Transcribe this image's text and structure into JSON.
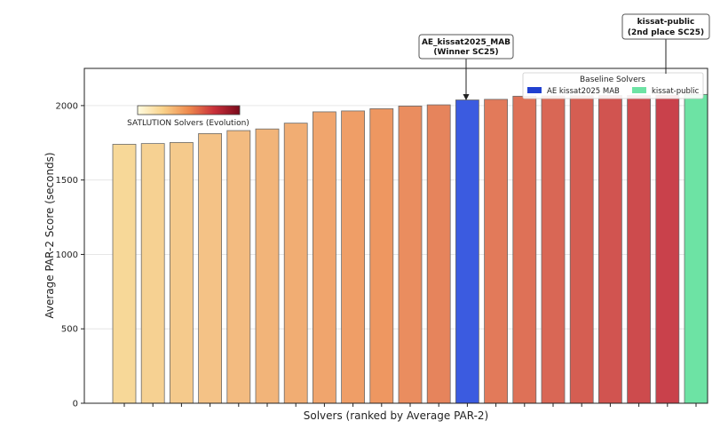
{
  "chart_data": {
    "type": "bar",
    "title": "",
    "xlabel": "Solvers (ranked by Average PAR-2)",
    "ylabel": "Average PAR-2 Score (seconds)",
    "ylim": [
      0,
      2250
    ],
    "yticks": [
      0,
      500,
      1000,
      1500,
      2000
    ],
    "grid": "horizontal",
    "values": [
      1740,
      1745,
      1752,
      1812,
      1832,
      1843,
      1882,
      1958,
      1964,
      1979,
      1997,
      2005,
      2038,
      2042,
      2063,
      2065,
      2066,
      2068,
      2068,
      2070,
      2075
    ],
    "highlight": {
      "winner_index": 12,
      "second_index": 20
    },
    "colors": {
      "winner": "#3b5be0",
      "second": "#6de3a4",
      "gradient_start": "#f7d898",
      "gradient_mid": "#ee9761",
      "gradient_end": "#c9414b",
      "bar_edge": "#6a6a6a"
    },
    "colorbar": {
      "label": "SATLUTION Solvers (Evolution)",
      "colors": [
        "#fffce0",
        "#f9d28a",
        "#ee8a4e",
        "#c9303a",
        "#7a0a1c"
      ]
    },
    "legend": {
      "title": "Baseline Solvers",
      "placement": "top-right",
      "entries": [
        {
          "label": "AE kissat2025 MAB",
          "color": "#2040d0"
        },
        {
          "label": "kissat-public",
          "color": "#6de3a4"
        }
      ]
    },
    "annotations": [
      {
        "lines": [
          "AE_kissat2025_MAB",
          "(Winner SC25)"
        ],
        "target_index": 12
      },
      {
        "lines": [
          "kissat-public",
          "(2nd place SC25)"
        ],
        "target_index": 20
      }
    ]
  }
}
